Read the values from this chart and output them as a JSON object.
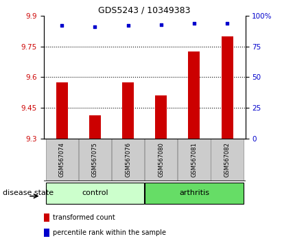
{
  "title": "GDS5243 / 10349383",
  "categories": [
    "GSM567074",
    "GSM567075",
    "GSM567076",
    "GSM567080",
    "GSM567081",
    "GSM567082"
  ],
  "bar_values": [
    9.575,
    9.415,
    9.575,
    9.51,
    9.725,
    9.8
  ],
  "percentile_values": [
    92,
    91,
    92,
    93,
    94,
    94
  ],
  "bar_color": "#cc0000",
  "dot_color": "#0000cc",
  "ylim_left": [
    9.3,
    9.9
  ],
  "ylim_right": [
    0,
    100
  ],
  "yticks_left": [
    9.3,
    9.45,
    9.6,
    9.75,
    9.9
  ],
  "yticks_right": [
    0,
    25,
    50,
    75,
    100
  ],
  "ytick_labels_left": [
    "9.3",
    "9.45",
    "9.6",
    "9.75",
    "9.9"
  ],
  "ytick_labels_right": [
    "0",
    "25",
    "50",
    "75",
    "100%"
  ],
  "hlines": [
    9.45,
    9.6,
    9.75
  ],
  "group_labels": [
    "control",
    "arthritis"
  ],
  "group_ranges": [
    [
      0,
      3
    ],
    [
      3,
      6
    ]
  ],
  "group_colors_light": [
    "#ccffcc",
    "#66dd66"
  ],
  "disease_state_label": "disease state",
  "legend_bar_label": "transformed count",
  "legend_dot_label": "percentile rank within the sample",
  "bar_width": 0.35,
  "plot_bg_color": "#ffffff",
  "tick_label_color_left": "#cc0000",
  "tick_label_color_right": "#0000cc",
  "label_box_color": "#cccccc",
  "title_fontsize": 9,
  "tick_fontsize": 7.5,
  "cat_fontsize": 6,
  "group_fontsize": 8,
  "legend_fontsize": 7
}
